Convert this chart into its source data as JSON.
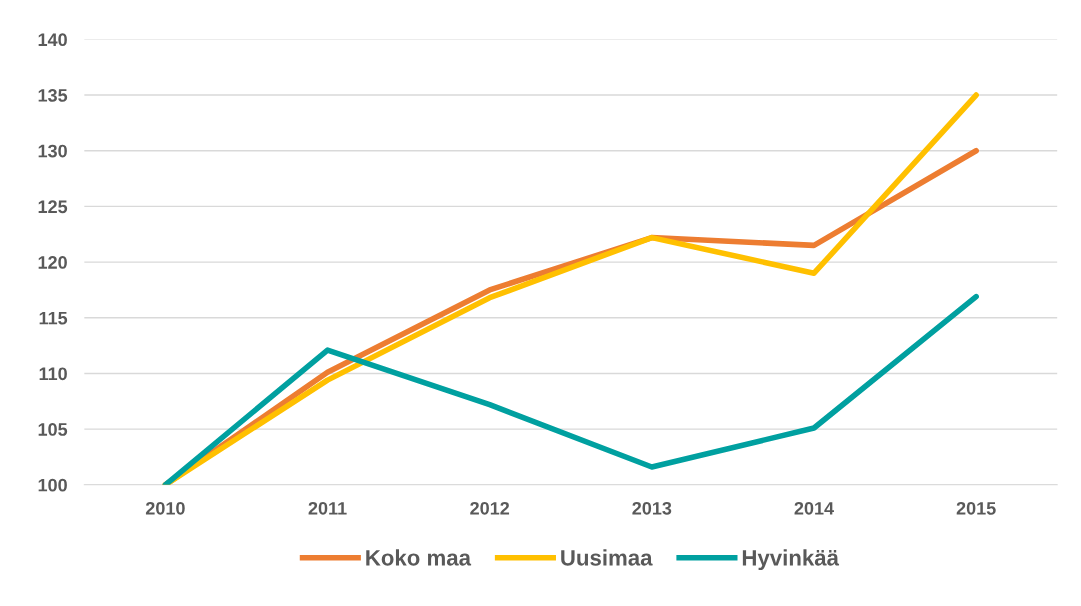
{
  "chart_data": {
    "type": "line",
    "categories": [
      "2010",
      "2011",
      "2012",
      "2013",
      "2014",
      "2015"
    ],
    "series": [
      {
        "name": "Koko maa",
        "color": "#ed7d31",
        "values": [
          100,
          110.1,
          117.5,
          122.2,
          121.5,
          130.0
        ]
      },
      {
        "name": "Uusimaa",
        "color": "#ffc000",
        "values": [
          100,
          109.4,
          116.8,
          122.2,
          119.0,
          135.0
        ]
      },
      {
        "name": "Hyvinkää",
        "color": "#00a0a0",
        "values": [
          100,
          112.1,
          107.2,
          101.6,
          105.1,
          116.9
        ]
      }
    ],
    "ylim": [
      100,
      140
    ],
    "yticks": [
      100,
      105,
      110,
      115,
      120,
      125,
      130,
      135,
      140
    ],
    "grid": "y",
    "legend": "bottom",
    "marker": "none",
    "line_style": "solid"
  }
}
